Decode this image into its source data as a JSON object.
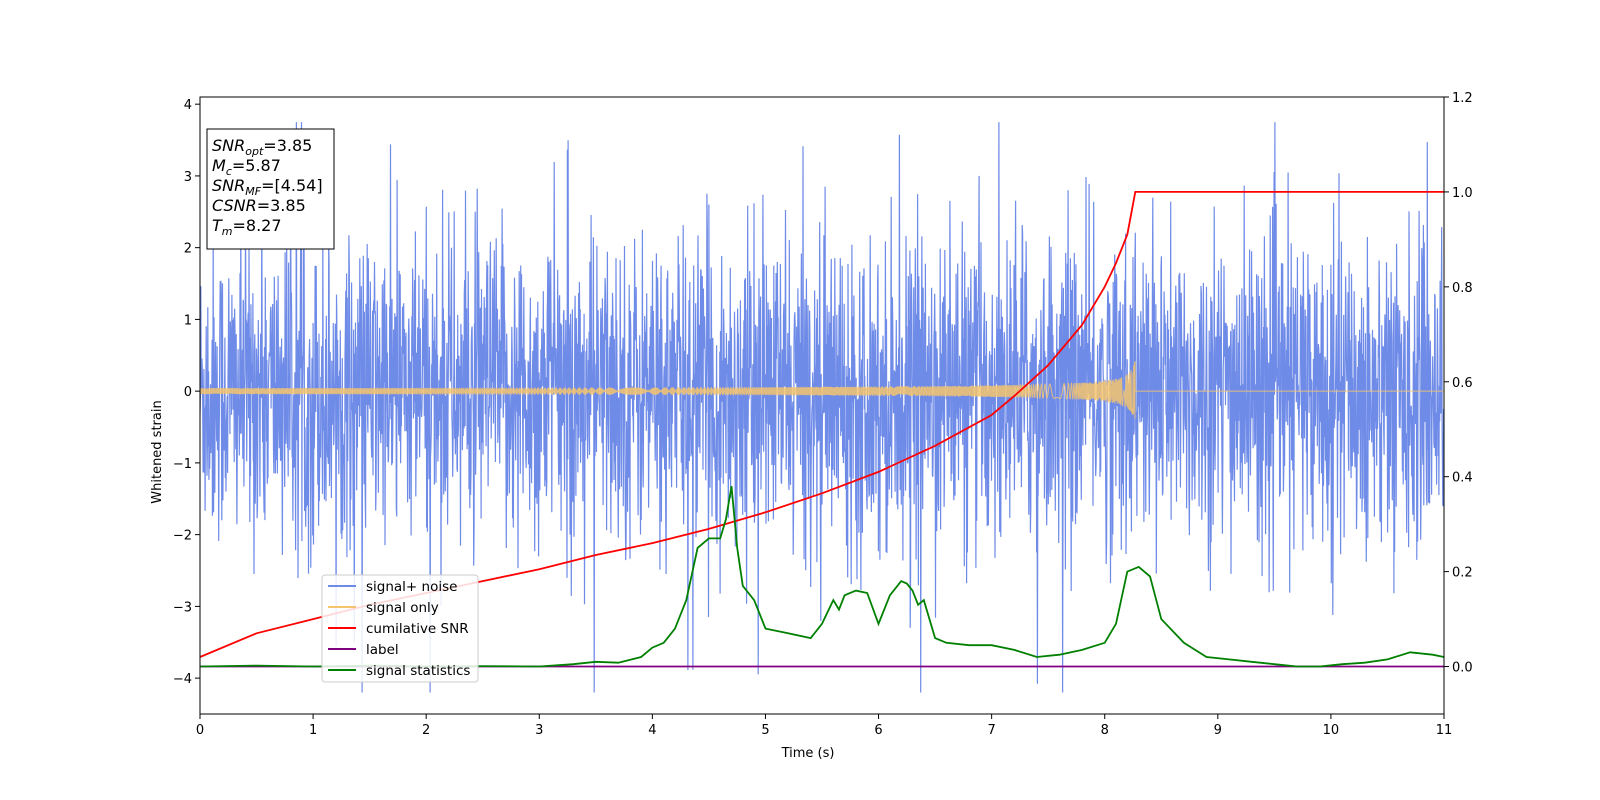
{
  "chart_data": {
    "type": "line",
    "xlabel": "Time (s)",
    "ylabel": "Whitened strain",
    "xlim": [
      0,
      11
    ],
    "ylim_left": [
      -4.5,
      4.1
    ],
    "ylim_right": [
      -0.1,
      1.2
    ],
    "x_ticks": [
      "0",
      "1",
      "2",
      "3",
      "4",
      "5",
      "6",
      "7",
      "8",
      "9",
      "10",
      "11"
    ],
    "y_left_ticks": [
      "−4",
      "−3",
      "−2",
      "−1",
      "0",
      "1",
      "2",
      "3",
      "4"
    ],
    "y_right_ticks": [
      "0.0",
      "0.2",
      "0.4",
      "0.6",
      "0.8",
      "1.0",
      "1.2"
    ],
    "legend_position": "lower-left",
    "annotation": {
      "lines": [
        {
          "sym": "SNR",
          "sub": "opt",
          "value": "=3.85"
        },
        {
          "sym": "M",
          "sub": "c",
          "value": "=5.87"
        },
        {
          "sym": "SNR",
          "sub": "MF",
          "value": "=[4.54]"
        },
        {
          "sym": "CSNR",
          "sub": "",
          "value": "=3.85"
        },
        {
          "sym": "T",
          "sub": "m",
          "value": "=8.27"
        }
      ]
    },
    "series": [
      {
        "name": "signal+ noise",
        "axis": "left",
        "color": "#6f8be8",
        "kind": "noise",
        "amplitude_envelope": 3.7,
        "approx_range": [
          -4.2,
          3.75
        ]
      },
      {
        "name": "signal only",
        "axis": "left",
        "color": "#f5c46f",
        "kind": "chirp",
        "merger_time": 8.27,
        "peak_amplitude": 0.45
      },
      {
        "name": "cumilative SNR",
        "axis": "right",
        "color": "#ff0000",
        "x": [
          0,
          0.5,
          1,
          1.5,
          2,
          2.5,
          3,
          3.5,
          4,
          4.5,
          5,
          5.5,
          6,
          6.5,
          7,
          7.2,
          7.5,
          7.8,
          8.0,
          8.1,
          8.2,
          8.27,
          8.3,
          9,
          10,
          11
        ],
        "values": [
          0.02,
          0.07,
          0.1,
          0.13,
          0.155,
          0.18,
          0.205,
          0.235,
          0.26,
          0.29,
          0.325,
          0.365,
          0.41,
          0.465,
          0.53,
          0.57,
          0.635,
          0.72,
          0.8,
          0.85,
          0.91,
          1.0,
          1.0,
          1.0,
          1.0,
          1.0
        ]
      },
      {
        "name": "label",
        "axis": "right",
        "color": "#800080",
        "x": [
          0,
          11
        ],
        "values": [
          0,
          0
        ]
      },
      {
        "name": "signal statistics",
        "axis": "right",
        "color": "#008000",
        "x": [
          0,
          0.5,
          1,
          1.5,
          2,
          2.5,
          3,
          3.3,
          3.5,
          3.7,
          3.9,
          4.0,
          4.1,
          4.2,
          4.3,
          4.4,
          4.5,
          4.6,
          4.65,
          4.7,
          4.75,
          4.8,
          4.9,
          5.0,
          5.2,
          5.4,
          5.5,
          5.6,
          5.65,
          5.7,
          5.8,
          5.9,
          6.0,
          6.1,
          6.2,
          6.25,
          6.3,
          6.35,
          6.4,
          6.5,
          6.6,
          6.8,
          7.0,
          7.2,
          7.4,
          7.6,
          7.8,
          8.0,
          8.1,
          8.2,
          8.3,
          8.4,
          8.5,
          8.7,
          8.9,
          9.1,
          9.3,
          9.5,
          9.7,
          9.9,
          10.1,
          10.3,
          10.5,
          10.7,
          10.9,
          11.0
        ],
        "values": [
          0.0,
          0.002,
          0.0,
          0.002,
          0.0,
          0.001,
          0.0,
          0.005,
          0.01,
          0.008,
          0.02,
          0.04,
          0.05,
          0.08,
          0.14,
          0.25,
          0.27,
          0.27,
          0.31,
          0.38,
          0.25,
          0.17,
          0.14,
          0.08,
          0.07,
          0.06,
          0.09,
          0.14,
          0.12,
          0.15,
          0.16,
          0.155,
          0.09,
          0.15,
          0.18,
          0.175,
          0.16,
          0.13,
          0.14,
          0.06,
          0.05,
          0.045,
          0.045,
          0.035,
          0.02,
          0.025,
          0.035,
          0.05,
          0.09,
          0.2,
          0.21,
          0.19,
          0.1,
          0.05,
          0.02,
          0.015,
          0.01,
          0.005,
          0.0,
          0.0,
          0.005,
          0.008,
          0.015,
          0.03,
          0.025,
          0.02
        ]
      }
    ]
  }
}
